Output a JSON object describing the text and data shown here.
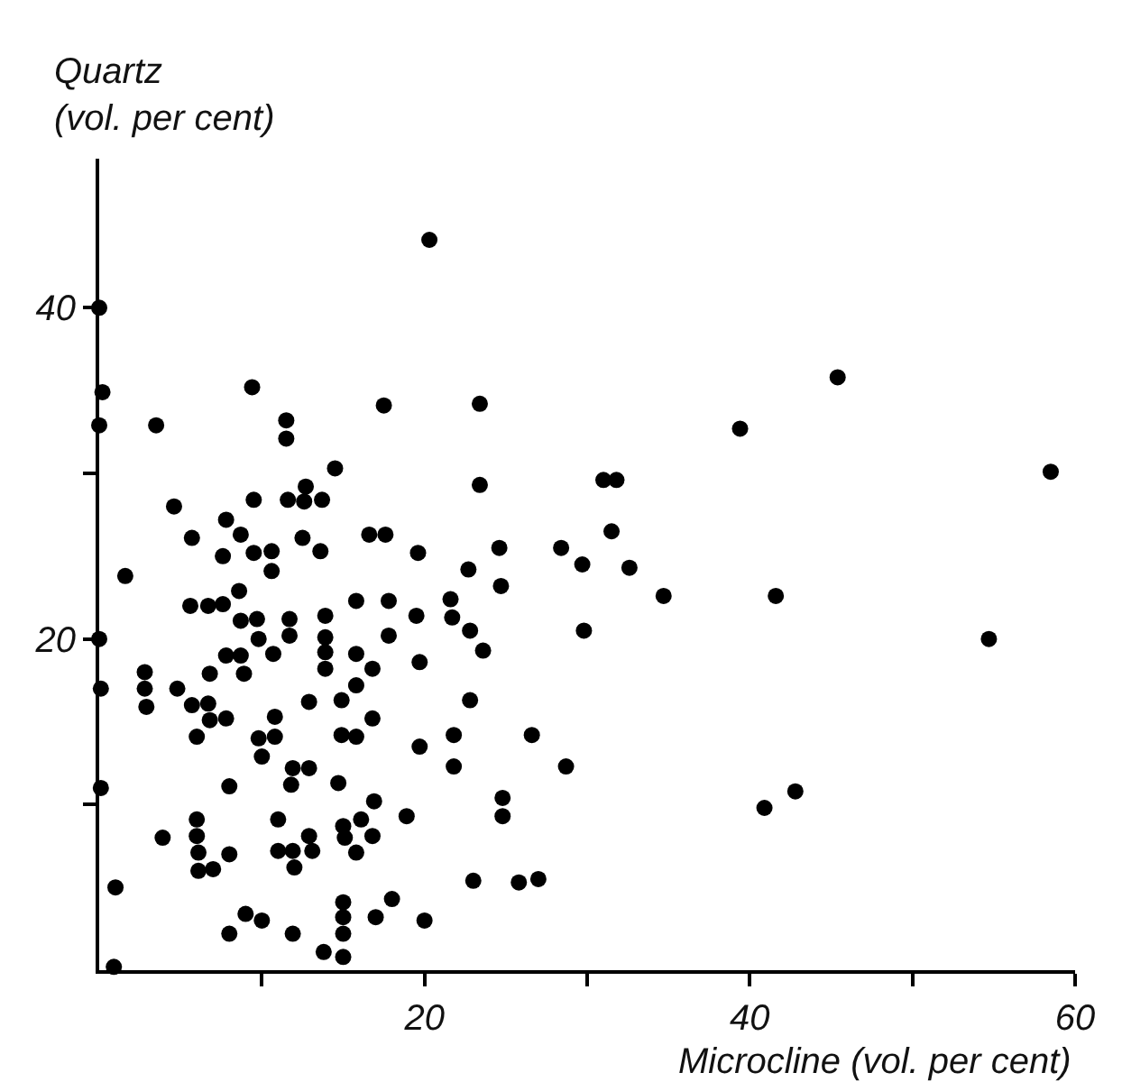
{
  "chart_data": {
    "type": "scatter",
    "xlabel": "Microcline (vol. per cent)",
    "ylabel": "Quartz\n(vol. per cent)",
    "xlim": [
      0,
      60
    ],
    "ylim": [
      0,
      49
    ],
    "xticks": [
      {
        "value": 10,
        "label": null
      },
      20,
      {
        "value": 30,
        "label": null
      },
      40,
      {
        "value": 50,
        "label": null
      },
      60
    ],
    "yticks": [
      {
        "value": 10,
        "label": null
      },
      20,
      {
        "value": 30,
        "label": null
      },
      40
    ],
    "marker": "circle",
    "series": [
      {
        "color": "#000000",
        "x": [
          0,
          0.2,
          0,
          3.5,
          9.4,
          17.5,
          11.5,
          11.5,
          14.5,
          12.7,
          9.5,
          11.6,
          12.6,
          13.7,
          4.6,
          7.8,
          8.7,
          5.7,
          16.6,
          17.6,
          9.5,
          10.6,
          12.5,
          13.6,
          7.6,
          10.6,
          19.6,
          1.6,
          8.6,
          5.6,
          6.7,
          7.6,
          8.7,
          9.7,
          11.7,
          13.9,
          15.8,
          17.8,
          19.5,
          9.8,
          11.7,
          13.9,
          17.8,
          0,
          7.8,
          8.7,
          10.7,
          13.9,
          15.8,
          6.8,
          8.9,
          13.9,
          16.8,
          19.7,
          2.8,
          2.8,
          0.1,
          4.8,
          15.8,
          2.9,
          5.7,
          6.7,
          6.8,
          7.8,
          10.8,
          12.9,
          14.9,
          16.8,
          6.0,
          9.8,
          10.8,
          14.9,
          15.8,
          19.7,
          10.0,
          11.9,
          12.9,
          11.8,
          8.0,
          14.7,
          0.1,
          16.9,
          18.9,
          6.0,
          11.0,
          16.1,
          3.9,
          6.0,
          15.0,
          15.1,
          16.8,
          12.9,
          6.1,
          8.0,
          11.0,
          11.9,
          13.1,
          15.8,
          6.1,
          7.0,
          12.0,
          1.0,
          18.0,
          15.0,
          15.0,
          17.0,
          20.0,
          9.0,
          10.0,
          8.0,
          11.9,
          15.0,
          13.8,
          15.0,
          0.9,
          20.3,
          23.4,
          39.4,
          23.4,
          31.0,
          31.8,
          31.5,
          24.6,
          28.4,
          22.7,
          29.7,
          32.6,
          24.7,
          21.6,
          34.7,
          21.7,
          22.8,
          29.8,
          23.6,
          22.8,
          21.8,
          21.8,
          26.6,
          28.7,
          24.8,
          24.8,
          23.0,
          25.8,
          27.0,
          45.4,
          58.5,
          41.6,
          54.7,
          40.9,
          42.8
        ],
        "values": [
          40,
          34.9,
          32.9,
          32.9,
          35.2,
          34.1,
          33.2,
          32.1,
          30.3,
          29.2,
          28.4,
          28.4,
          28.3,
          28.4,
          28.0,
          27.2,
          26.3,
          26.1,
          26.3,
          26.3,
          25.2,
          25.3,
          26.1,
          25.3,
          25.0,
          24.1,
          25.2,
          23.8,
          22.9,
          22.0,
          22.0,
          22.1,
          21.1,
          21.2,
          21.2,
          21.4,
          22.3,
          22.3,
          21.4,
          20.0,
          20.2,
          20.1,
          20.2,
          20.0,
          19.0,
          19.0,
          19.1,
          19.2,
          19.1,
          17.9,
          17.9,
          18.2,
          18.2,
          18.6,
          18.0,
          17.0,
          17.0,
          17.0,
          17.2,
          15.9,
          16.0,
          16.1,
          15.1,
          15.2,
          15.3,
          16.2,
          16.3,
          15.2,
          14.1,
          14.0,
          14.1,
          14.2,
          14.1,
          13.5,
          12.9,
          12.2,
          12.2,
          11.2,
          11.1,
          11.3,
          11.0,
          10.2,
          9.3,
          9.1,
          9.1,
          9.1,
          8.0,
          8.1,
          8.7,
          8.0,
          8.1,
          8.1,
          7.1,
          7.0,
          7.2,
          7.2,
          7.2,
          7.1,
          6.0,
          6.1,
          6.2,
          5.0,
          4.3,
          4.1,
          3.2,
          3.2,
          3.0,
          3.4,
          3.0,
          2.2,
          2.2,
          2.2,
          1.1,
          0.8,
          0.2,
          44.1,
          34.2,
          32.7,
          29.3,
          29.6,
          29.6,
          26.5,
          25.5,
          25.5,
          24.2,
          24.5,
          24.3,
          23.2,
          22.4,
          22.6,
          21.3,
          20.5,
          20.5,
          19.3,
          16.3,
          14.2,
          12.3,
          14.2,
          12.3,
          10.4,
          9.3,
          5.4,
          5.3,
          5.5,
          35.8,
          30.1,
          22.6,
          20.0,
          9.8,
          10.8
        ]
      }
    ]
  }
}
